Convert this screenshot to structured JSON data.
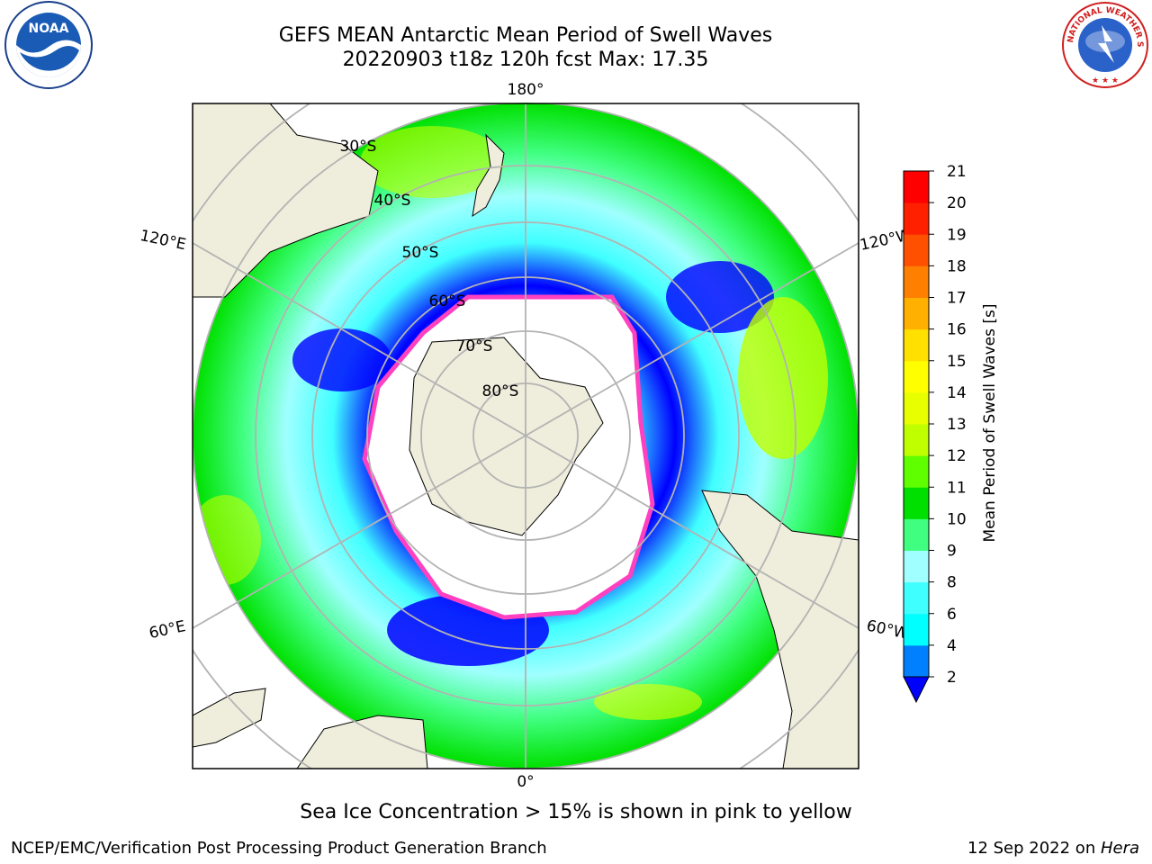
{
  "header": {
    "title_line1": "GEFS MEAN Antarctic Mean Period of Swell Waves",
    "title_line2": "20220903 t18z 120h fcst   Max: 17.35"
  },
  "logos": {
    "left": "noaa-logo",
    "left_text": "NOAA",
    "right": "nws-logo",
    "right_text": "NATIONAL WEATHER SERVICE"
  },
  "map": {
    "projection": "south polar stereographic",
    "longitude_labels": {
      "top": "180°",
      "upper_left": "120°E",
      "upper_right": "120°W",
      "lower_left": "60°E",
      "lower_right": "60°W",
      "bottom": "0°"
    },
    "latitude_labels": [
      "30°S",
      "40°S",
      "50°S",
      "60°S",
      "70°S",
      "80°S"
    ]
  },
  "colorbar": {
    "label": "Mean Period of Swell Waves [s]",
    "ticks": [
      "2",
      "4",
      "6",
      "8",
      "9",
      "10",
      "11",
      "12",
      "13",
      "14",
      "15",
      "16",
      "17",
      "18",
      "19",
      "20",
      "21"
    ],
    "colors": [
      "#0000ff",
      "#0080ff",
      "#00ffff",
      "#40ffff",
      "#a0ffff",
      "#40ff80",
      "#00e000",
      "#60ff00",
      "#c0ff00",
      "#e8ff00",
      "#ffff00",
      "#ffe000",
      "#ffb000",
      "#ff8000",
      "#ff5000",
      "#ff2000",
      "#ff0000"
    ]
  },
  "caption": "Sea Ice Concentration > 15% is shown in pink to yellow",
  "footer": {
    "left": "NCEP/EMC/Verification Post Processing Product Generation Branch",
    "right_prefix": "12 Sep 2022 on ",
    "right_italic": "Hera"
  }
}
